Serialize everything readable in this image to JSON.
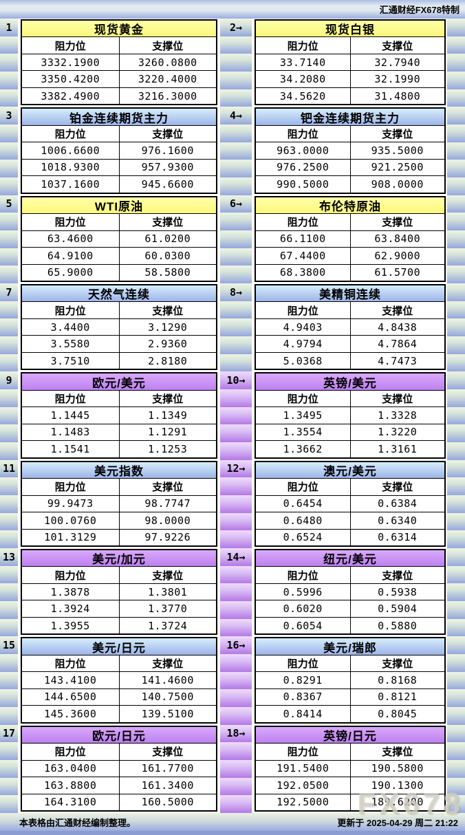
{
  "brand": "汇通财经FX678特制",
  "watermark": "FX678",
  "footer": {
    "note": "本表格由汇通财经编制整理。",
    "updated": "更新于 2025-04-29 周二 21:22"
  },
  "columns": {
    "resistance": "阻力位",
    "support": "支撑位"
  },
  "colors": {
    "bar_blue": "#8b9cd3",
    "title_yellow": "#fdfa84",
    "title_blue": "#bcd9f4",
    "title_purple": "#c994f5",
    "stripe_top_green": "#edf4e2",
    "stripe_bottom_blue": "#96a7dd",
    "gutter_purple": "#b379e6",
    "border": "#000000"
  },
  "chart_data": {
    "type": "table",
    "columns": [
      "阻力位",
      "支撑位"
    ],
    "gutter_themes": [
      "green",
      "green",
      "green",
      "green",
      "purple",
      "purple",
      "purple",
      "purple",
      "purple"
    ],
    "tables": [
      {
        "no": "1",
        "title": "现货黄金",
        "theme": "yellow",
        "resistance": [
          "3332.1900",
          "3350.4200",
          "3382.4900"
        ],
        "support": [
          "3260.0800",
          "3220.4000",
          "3216.3000"
        ]
      },
      {
        "no": "2→",
        "title": "现货白银",
        "theme": "yellow",
        "resistance": [
          "33.7140",
          "34.2080",
          "34.5620"
        ],
        "support": [
          "32.7940",
          "32.1990",
          "31.4800"
        ]
      },
      {
        "no": "3",
        "title": "铂金连续期货主力",
        "theme": "blue",
        "resistance": [
          "1006.6600",
          "1018.9300",
          "1037.1600"
        ],
        "support": [
          "976.1600",
          "957.9300",
          "945.6600"
        ]
      },
      {
        "no": "4→",
        "title": "钯金连续期货主力",
        "theme": "blue",
        "resistance": [
          "963.0000",
          "976.2500",
          "990.5000"
        ],
        "support": [
          "935.5000",
          "921.2500",
          "908.0000"
        ]
      },
      {
        "no": "5",
        "title": "WTI原油",
        "theme": "yellow",
        "resistance": [
          "63.4600",
          "64.9100",
          "65.9000"
        ],
        "support": [
          "61.0200",
          "60.0300",
          "58.5800"
        ]
      },
      {
        "no": "6→",
        "title": "布伦特原油",
        "theme": "yellow",
        "resistance": [
          "66.1100",
          "67.4400",
          "68.3800"
        ],
        "support": [
          "63.8400",
          "62.9000",
          "61.5700"
        ]
      },
      {
        "no": "7",
        "title": "天然气连续",
        "theme": "blue",
        "resistance": [
          "3.4400",
          "3.5580",
          "3.7510"
        ],
        "support": [
          "3.1290",
          "2.9360",
          "2.8180"
        ]
      },
      {
        "no": "8→",
        "title": "美精铜连续",
        "theme": "blue",
        "resistance": [
          "4.9403",
          "4.9794",
          "5.0368"
        ],
        "support": [
          "4.8438",
          "4.7864",
          "4.7473"
        ]
      },
      {
        "no": "9",
        "title": "欧元/美元",
        "theme": "purple",
        "resistance": [
          "1.1445",
          "1.1483",
          "1.1541"
        ],
        "support": [
          "1.1349",
          "1.1291",
          "1.1253"
        ]
      },
      {
        "no": "10→",
        "title": "英镑/美元",
        "theme": "purple",
        "resistance": [
          "1.3495",
          "1.3554",
          "1.3662"
        ],
        "support": [
          "1.3328",
          "1.3220",
          "1.3161"
        ]
      },
      {
        "no": "11",
        "title": "美元指数",
        "theme": "blue",
        "resistance": [
          "99.9473",
          "100.0760",
          "101.3129"
        ],
        "support": [
          "98.7747",
          "98.0000",
          "97.9226"
        ]
      },
      {
        "no": "12→",
        "title": "澳元/美元",
        "theme": "blue",
        "resistance": [
          "0.6454",
          "0.6480",
          "0.6524"
        ],
        "support": [
          "0.6384",
          "0.6340",
          "0.6314"
        ]
      },
      {
        "no": "13",
        "title": "美元/加元",
        "theme": "purple",
        "resistance": [
          "1.3878",
          "1.3924",
          "1.3955"
        ],
        "support": [
          "1.3801",
          "1.3770",
          "1.3724"
        ]
      },
      {
        "no": "14→",
        "title": "纽元/美元",
        "theme": "purple",
        "resistance": [
          "0.5996",
          "0.6020",
          "0.6054"
        ],
        "support": [
          "0.5938",
          "0.5904",
          "0.5880"
        ]
      },
      {
        "no": "15",
        "title": "美元/日元",
        "theme": "blue",
        "resistance": [
          "143.4100",
          "144.6500",
          "145.3600"
        ],
        "support": [
          "141.4600",
          "140.7500",
          "139.5100"
        ]
      },
      {
        "no": "16→",
        "title": "美元/瑞郎",
        "theme": "blue",
        "resistance": [
          "0.8291",
          "0.8367",
          "0.8414"
        ],
        "support": [
          "0.8168",
          "0.8121",
          "0.8045"
        ]
      },
      {
        "no": "17",
        "title": "欧元/日元",
        "theme": "purple",
        "resistance": [
          "163.0400",
          "163.8800",
          "164.3100"
        ],
        "support": [
          "161.7700",
          "161.3400",
          "160.5000"
        ]
      },
      {
        "no": "18→",
        "title": "英镑/日元",
        "theme": "purple",
        "resistance": [
          "191.5400",
          "192.0500",
          "192.5000"
        ],
        "support": [
          "190.5800",
          "190.1300",
          "189.6200"
        ]
      }
    ]
  }
}
